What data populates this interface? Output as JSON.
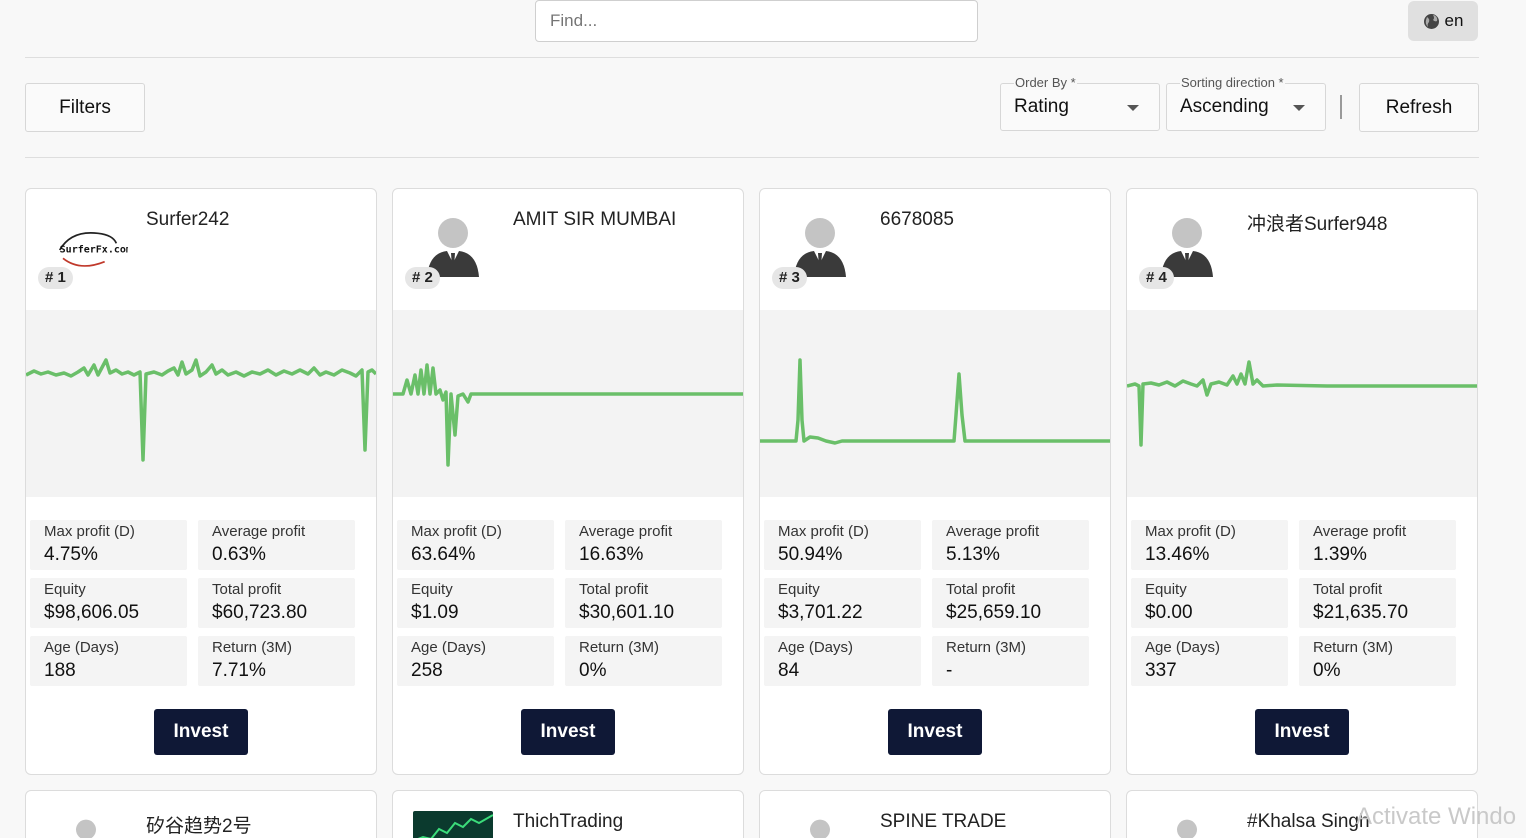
{
  "search": {
    "placeholder": "Find..."
  },
  "language": {
    "label": "en"
  },
  "toolbar": {
    "filters_label": "Filters",
    "order_by": {
      "label": "Order By *",
      "value": "Rating"
    },
    "sorting_direction": {
      "label": "Sorting direction *",
      "value": "Ascending"
    },
    "refresh_label": "Refresh"
  },
  "invest_label": "Invest",
  "cards": [
    {
      "name": "Surfer242",
      "rank": "# 1",
      "avatar": "surferfx-logo",
      "stats": {
        "max_profit_label": "Max profit (D)",
        "max_profit": "4.75%",
        "avg_profit_label": "Average profit",
        "avg_profit": "0.63%",
        "equity_label": "Equity",
        "equity": "$98,606.05",
        "total_profit_label": "Total profit",
        "total_profit": "$60,723.80",
        "age_label": "Age (Days)",
        "age": "188",
        "return_label": "Return (3M)",
        "return": "7.71%"
      }
    },
    {
      "name": "AMIT SIR MUMBAI",
      "rank": "# 2",
      "avatar": "user-icon",
      "stats": {
        "max_profit_label": "Max profit (D)",
        "max_profit": "63.64%",
        "avg_profit_label": "Average profit",
        "avg_profit": "16.63%",
        "equity_label": "Equity",
        "equity": "$1.09",
        "total_profit_label": "Total profit",
        "total_profit": "$30,601.10",
        "age_label": "Age (Days)",
        "age": "258",
        "return_label": "Return (3M)",
        "return": "0%"
      }
    },
    {
      "name": "6678085",
      "rank": "# 3",
      "avatar": "user-icon",
      "stats": {
        "max_profit_label": "Max profit (D)",
        "max_profit": "50.94%",
        "avg_profit_label": "Average profit",
        "avg_profit": "5.13%",
        "equity_label": "Equity",
        "equity": "$3,701.22",
        "total_profit_label": "Total profit",
        "total_profit": "$25,659.10",
        "age_label": "Age (Days)",
        "age": "84",
        "return_label": "Return (3M)",
        "return": "-"
      }
    },
    {
      "name": "冲浪者Surfer948",
      "rank": "# 4",
      "avatar": "user-icon",
      "stats": {
        "max_profit_label": "Max profit (D)",
        "max_profit": "13.46%",
        "avg_profit_label": "Average profit",
        "avg_profit": "1.39%",
        "equity_label": "Equity",
        "equity": "$0.00",
        "total_profit_label": "Total profit",
        "total_profit": "$21,635.70",
        "age_label": "Age (Days)",
        "age": "337",
        "return_label": "Return (3M)",
        "return": "0%"
      }
    }
  ],
  "next_cards": [
    {
      "name": "矽谷趋势2号",
      "avatar": "user-icon"
    },
    {
      "name": "ThichTrading",
      "avatar": "thumbnail"
    },
    {
      "name": "SPINE TRADE",
      "avatar": "user-icon"
    },
    {
      "name": "#Khalsa Singh",
      "avatar": "user-icon"
    }
  ],
  "watermark": "Activate Windo",
  "colors": {
    "chart_line": "#6abf69",
    "invest_button": "#0f1836"
  },
  "logo_text": "SurferFx.com"
}
